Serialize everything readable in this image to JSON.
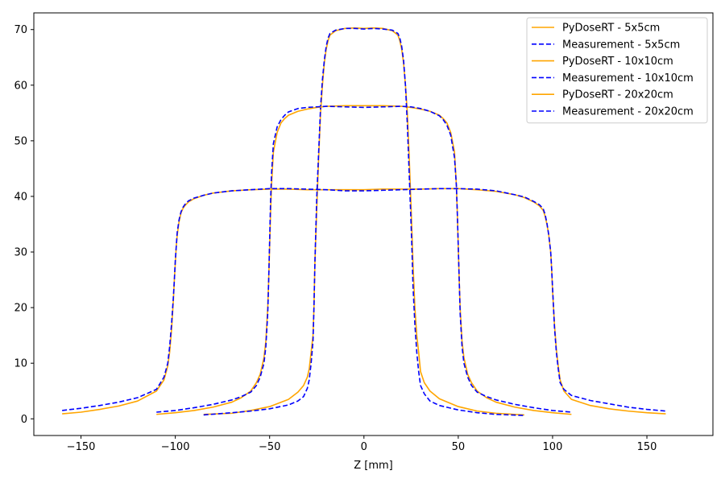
{
  "chart_data": {
    "type": "line",
    "title": "",
    "xlabel": "Z [mm]",
    "ylabel": "",
    "xlim": [
      -175,
      185
    ],
    "ylim": [
      -3,
      73
    ],
    "xticks": [
      -150,
      -100,
      -50,
      0,
      50,
      100,
      150
    ],
    "yticks": [
      0,
      10,
      20,
      30,
      40,
      50,
      60,
      70
    ],
    "grid": false,
    "legend_position": "top-right",
    "colors": {
      "pydose": "#ffa500",
      "measurement": "#0000ff"
    },
    "series": [
      {
        "name": "PyDoseRT - 5x5cm",
        "style": "solid",
        "color": "#ffa500",
        "x": [
          -85,
          -70,
          -60,
          -50,
          -40,
          -35,
          -32,
          -30,
          -29,
          -28,
          -27,
          -26.5,
          -26,
          -25.5,
          -25,
          -24,
          -23,
          -22,
          -21,
          -20,
          -19,
          -18,
          -15,
          -10,
          -5,
          0,
          5,
          10,
          15,
          18,
          19,
          20,
          21,
          22,
          23,
          24,
          25,
          25.5,
          26,
          27,
          28,
          29,
          30,
          32,
          35,
          40,
          50,
          60,
          70,
          85
        ],
        "y": [
          0.8,
          1.0,
          1.5,
          2.2,
          3.5,
          4.8,
          6.0,
          7.5,
          9.0,
          12.0,
          15.0,
          20.0,
          28.0,
          33.0,
          38.0,
          47.0,
          55.0,
          60.0,
          64.0,
          66.5,
          68.0,
          69.0,
          69.8,
          70.2,
          70.3,
          70.2,
          70.3,
          70.2,
          69.8,
          69.0,
          68.0,
          66.5,
          64.0,
          60.0,
          55.0,
          47.0,
          38.0,
          33.0,
          28.0,
          20.0,
          15.0,
          12.0,
          8.5,
          6.5,
          5.0,
          3.6,
          2.2,
          1.4,
          1.0,
          0.7
        ]
      },
      {
        "name": "Measurement - 5x5cm",
        "style": "dashed",
        "color": "#0000ff",
        "x": [
          -85,
          -70,
          -60,
          -50,
          -40,
          -35,
          -32,
          -30,
          -29,
          -28,
          -27,
          -26.5,
          -26,
          -25.5,
          -25,
          -24,
          -23,
          -22,
          -21,
          -20,
          -19,
          -18,
          -15,
          -10,
          -5,
          0,
          5,
          10,
          15,
          18,
          19,
          20,
          21,
          22,
          23,
          24,
          25,
          25.5,
          26,
          27,
          28,
          29,
          30,
          32,
          35,
          40,
          50,
          60,
          70,
          85
        ],
        "y": [
          0.7,
          1.1,
          1.4,
          1.8,
          2.5,
          3.2,
          4.0,
          5.5,
          7.0,
          10.0,
          14.0,
          20.0,
          28.0,
          34.0,
          40.0,
          48.0,
          56.0,
          61.0,
          64.5,
          67.0,
          68.5,
          69.3,
          69.9,
          70.2,
          70.2,
          70.1,
          70.2,
          70.1,
          69.9,
          69.3,
          68.5,
          67.0,
          64.5,
          60.0,
          53.0,
          44.0,
          35.0,
          30.0,
          24.0,
          17.0,
          12.0,
          8.5,
          6.0,
          4.5,
          3.2,
          2.4,
          1.6,
          1.1,
          0.8,
          0.6
        ]
      },
      {
        "name": "PyDoseRT - 10x10cm",
        "style": "solid",
        "color": "#ffa500",
        "x": [
          -110,
          -100,
          -90,
          -80,
          -70,
          -65,
          -60,
          -57,
          -55,
          -53,
          -52,
          -51,
          -50.5,
          -50,
          -49.5,
          -49,
          -48,
          -46,
          -44,
          -42,
          -40,
          -35,
          -30,
          -25,
          -20,
          -10,
          0,
          10,
          20,
          25,
          30,
          35,
          40,
          42,
          44,
          46,
          48,
          49,
          49.5,
          50,
          50.5,
          51,
          52,
          53,
          55,
          57,
          60,
          65,
          70,
          80,
          90,
          100,
          110
        ],
        "y": [
          0.8,
          1.1,
          1.5,
          2.1,
          3.0,
          3.8,
          5.0,
          6.5,
          8.0,
          11.0,
          14.0,
          20.0,
          25.0,
          31.0,
          37.0,
          42.0,
          48.0,
          51.5,
          53.2,
          54.0,
          54.6,
          55.3,
          55.7,
          56.0,
          56.2,
          56.3,
          56.3,
          56.3,
          56.2,
          56.0,
          55.7,
          55.3,
          54.6,
          54.0,
          53.2,
          51.5,
          48.0,
          42.0,
          37.0,
          31.0,
          25.0,
          20.0,
          14.0,
          11.0,
          8.0,
          6.5,
          5.0,
          3.8,
          3.0,
          2.1,
          1.5,
          1.1,
          0.8
        ]
      },
      {
        "name": "Measurement - 10x10cm",
        "style": "dashed",
        "color": "#0000ff",
        "x": [
          -110,
          -100,
          -90,
          -80,
          -70,
          -65,
          -60,
          -57,
          -55,
          -53,
          -52,
          -51,
          -50.5,
          -50,
          -49.5,
          -49,
          -48,
          -46,
          -44,
          -42,
          -40,
          -35,
          -30,
          -25,
          -20,
          -10,
          0,
          10,
          20,
          25,
          30,
          35,
          40,
          42,
          44,
          46,
          48,
          49,
          49.5,
          50,
          50.5,
          51,
          52,
          53,
          55,
          57,
          60,
          65,
          70,
          80,
          90,
          100,
          110
        ],
        "y": [
          1.2,
          1.5,
          2.0,
          2.6,
          3.4,
          4.0,
          4.8,
          6.0,
          7.5,
          10.0,
          13.0,
          19.0,
          25.0,
          32.0,
          39.0,
          44.0,
          49.5,
          52.5,
          53.8,
          54.6,
          55.2,
          55.8,
          56.0,
          56.1,
          56.2,
          56.1,
          56.0,
          56.1,
          56.2,
          56.1,
          55.8,
          55.3,
          54.5,
          53.8,
          52.8,
          51.0,
          47.0,
          42.0,
          37.0,
          31.0,
          25.0,
          19.0,
          13.0,
          10.0,
          7.5,
          6.0,
          4.8,
          4.0,
          3.4,
          2.6,
          2.0,
          1.5,
          1.2
        ]
      },
      {
        "name": "PyDoseRT - 20x20cm",
        "style": "solid",
        "color": "#ffa500",
        "x": [
          -160,
          -150,
          -140,
          -130,
          -120,
          -110,
          -106,
          -104,
          -103,
          -102,
          -101,
          -100.5,
          -100,
          -99.5,
          -99,
          -98,
          -97,
          -96,
          -95,
          -93,
          -90,
          -85,
          -80,
          -70,
          -60,
          -50,
          -40,
          -30,
          -20,
          -10,
          0,
          10,
          20,
          30,
          40,
          50,
          60,
          70,
          80,
          85,
          90,
          93,
          95,
          96,
          97,
          98,
          99,
          99.5,
          100,
          100.5,
          101,
          102,
          103,
          104,
          106,
          110,
          120,
          130,
          140,
          150,
          160
        ],
        "y": [
          0.9,
          1.2,
          1.7,
          2.3,
          3.2,
          5.0,
          7.0,
          9.5,
          12.0,
          16.0,
          21.5,
          25.0,
          28.0,
          31.0,
          33.0,
          35.5,
          37.0,
          37.8,
          38.3,
          39.0,
          39.6,
          40.2,
          40.6,
          41.0,
          41.2,
          41.3,
          41.3,
          41.2,
          41.2,
          41.2,
          41.2,
          41.3,
          41.3,
          41.3,
          41.4,
          41.4,
          41.2,
          40.9,
          40.3,
          39.8,
          39.0,
          38.3,
          37.5,
          36.5,
          35.0,
          33.0,
          30.0,
          27.0,
          23.0,
          20.0,
          17.0,
          12.5,
          9.5,
          7.0,
          5.0,
          3.5,
          2.4,
          1.8,
          1.4,
          1.1,
          0.9
        ]
      },
      {
        "name": "Measurement - 20x20cm",
        "style": "dashed",
        "color": "#0000ff",
        "x": [
          -160,
          -150,
          -140,
          -130,
          -120,
          -110,
          -106,
          -104,
          -103,
          -102,
          -101,
          -100.5,
          -100,
          -99.5,
          -99,
          -98,
          -97,
          -96,
          -95,
          -93,
          -90,
          -85,
          -80,
          -70,
          -60,
          -50,
          -40,
          -30,
          -20,
          -10,
          0,
          10,
          20,
          30,
          40,
          50,
          60,
          70,
          80,
          85,
          90,
          93,
          95,
          96,
          97,
          98,
          99,
          99.5,
          100,
          100.5,
          101,
          102,
          103,
          104,
          106,
          110,
          120,
          130,
          140,
          150,
          160
        ],
        "y": [
          1.5,
          1.9,
          2.4,
          3.0,
          3.8,
          5.3,
          7.5,
          10.0,
          13.0,
          17.0,
          22.0,
          25.0,
          28.5,
          31.0,
          33.5,
          35.8,
          37.2,
          38.0,
          38.5,
          39.2,
          39.7,
          40.2,
          40.6,
          41.0,
          41.2,
          41.4,
          41.4,
          41.3,
          41.2,
          41.0,
          41.0,
          41.1,
          41.2,
          41.3,
          41.4,
          41.4,
          41.3,
          41.0,
          40.3,
          39.9,
          39.1,
          38.5,
          37.8,
          36.8,
          35.2,
          33.0,
          30.0,
          27.0,
          23.5,
          20.0,
          16.5,
          12.0,
          9.0,
          6.5,
          5.3,
          4.2,
          3.3,
          2.7,
          2.1,
          1.7,
          1.4
        ]
      }
    ]
  }
}
